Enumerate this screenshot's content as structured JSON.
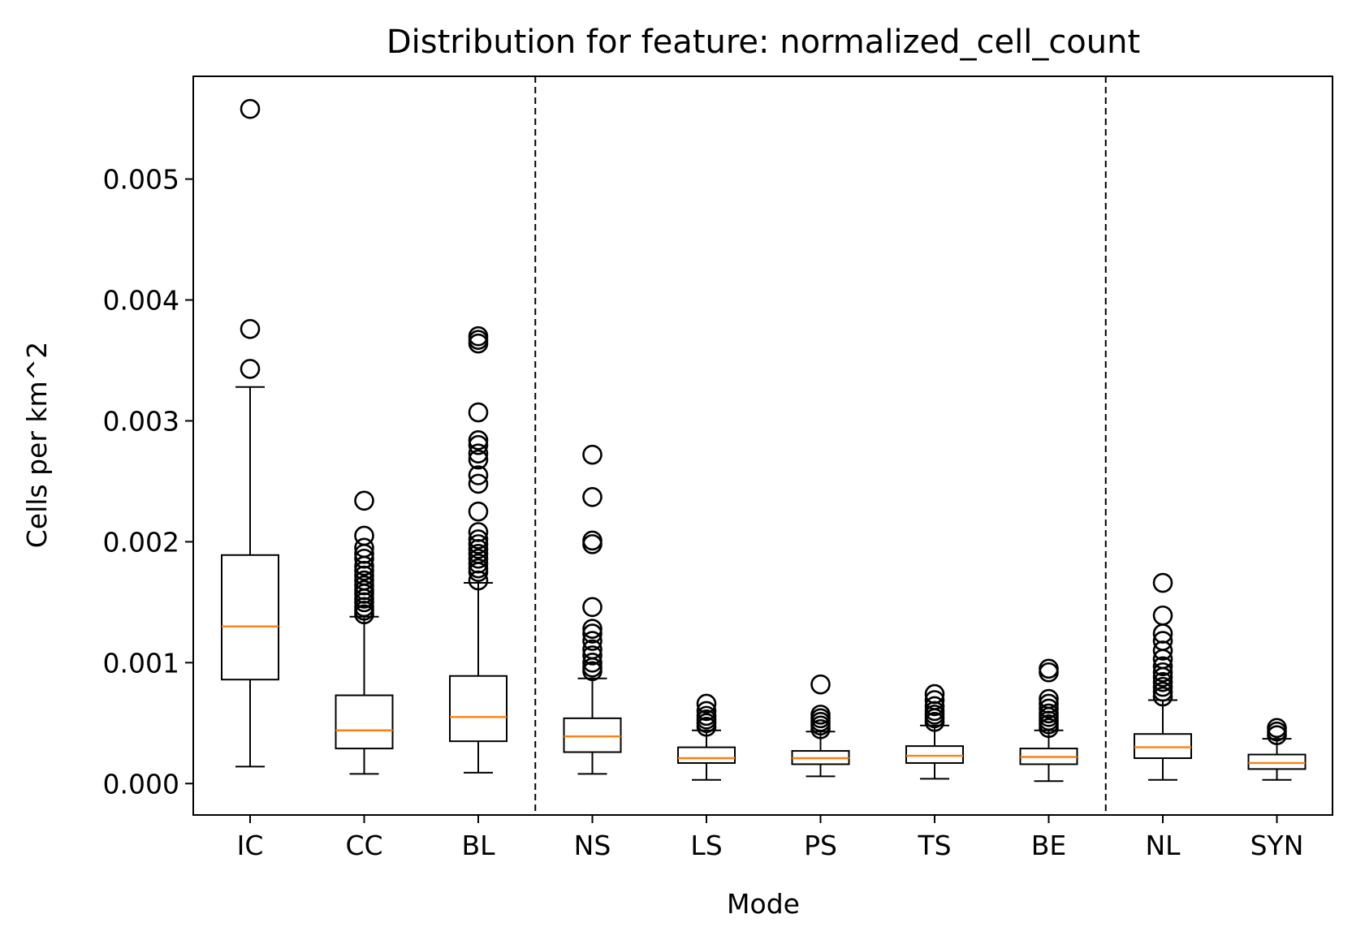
{
  "chart_data": {
    "type": "boxplot",
    "title": "Distribution for feature: normalized_cell_count",
    "xlabel": "Mode",
    "ylabel": "Cells per km^2",
    "ylim": [
      -0.00026,
      0.00585
    ],
    "yticks": [
      0.0,
      0.001,
      0.002,
      0.003,
      0.004,
      0.005
    ],
    "ytick_labels": [
      "0.000",
      "0.001",
      "0.002",
      "0.003",
      "0.004",
      "0.005"
    ],
    "group_separators_after": [
      "BL",
      "BE"
    ],
    "categories": [
      "IC",
      "CC",
      "BL",
      "NS",
      "LS",
      "PS",
      "TS",
      "BE",
      "NL",
      "SYN"
    ],
    "colors": {
      "box": "#000000",
      "median": "#ff7f0e",
      "separator": "#000000"
    },
    "boxes": [
      {
        "label": "IC",
        "whislo": 0.00014,
        "q1": 0.00086,
        "med": 0.0013,
        "q3": 0.00189,
        "whishi": 0.00328,
        "fliers": [
          0.00343,
          0.00376,
          0.00558
        ]
      },
      {
        "label": "CC",
        "whislo": 8e-05,
        "q1": 0.00029,
        "med": 0.00044,
        "q3": 0.00073,
        "whishi": 0.00138,
        "fliers": [
          0.0014,
          0.00143,
          0.00146,
          0.0015,
          0.00153,
          0.00157,
          0.0016,
          0.00164,
          0.00168,
          0.00172,
          0.00176,
          0.0018,
          0.00186,
          0.0019,
          0.00195,
          0.00205,
          0.00234
        ]
      },
      {
        "label": "BL",
        "whislo": 9e-05,
        "q1": 0.00035,
        "med": 0.00055,
        "q3": 0.00089,
        "whishi": 0.00166,
        "fliers": [
          0.00168,
          0.00175,
          0.00178,
          0.00182,
          0.00186,
          0.0019,
          0.00194,
          0.00198,
          0.00202,
          0.00208,
          0.00225,
          0.00248,
          0.00255,
          0.00268,
          0.00273,
          0.0028,
          0.00284,
          0.00307,
          0.00364,
          0.00367,
          0.0037
        ]
      },
      {
        "label": "NS",
        "whislo": 8e-05,
        "q1": 0.00026,
        "med": 0.00039,
        "q3": 0.00054,
        "whishi": 0.00087,
        "fliers": [
          0.00093,
          0.00096,
          0.001,
          0.00106,
          0.00111,
          0.00118,
          0.00124,
          0.00128,
          0.00146,
          0.00198,
          0.00201,
          0.00237,
          0.00272
        ]
      },
      {
        "label": "LS",
        "whislo": 3e-05,
        "q1": 0.00017,
        "med": 0.00021,
        "q3": 0.0003,
        "whishi": 0.00044,
        "fliers": [
          0.00047,
          0.0005,
          0.00053,
          0.00056,
          0.0006,
          0.00066
        ]
      },
      {
        "label": "PS",
        "whislo": 6e-05,
        "q1": 0.00016,
        "med": 0.00021,
        "q3": 0.00027,
        "whishi": 0.00043,
        "fliers": [
          0.00045,
          0.00048,
          0.00051,
          0.00054,
          0.00057,
          0.00082
        ]
      },
      {
        "label": "TS",
        "whislo": 4e-05,
        "q1": 0.00017,
        "med": 0.00023,
        "q3": 0.00031,
        "whishi": 0.00048,
        "fliers": [
          0.00051,
          0.00054,
          0.00057,
          0.0006,
          0.00064,
          0.00069,
          0.00074
        ]
      },
      {
        "label": "BE",
        "whislo": 2e-05,
        "q1": 0.00016,
        "med": 0.00022,
        "q3": 0.00029,
        "whishi": 0.00044,
        "fliers": [
          0.00046,
          0.00049,
          0.00052,
          0.00055,
          0.00058,
          0.00062,
          0.00066,
          0.0007,
          0.00092,
          0.00095
        ]
      },
      {
        "label": "NL",
        "whislo": 3e-05,
        "q1": 0.00021,
        "med": 0.0003,
        "q3": 0.00041,
        "whishi": 0.00069,
        "fliers": [
          0.00072,
          0.00076,
          0.0008,
          0.00084,
          0.00088,
          0.00092,
          0.00097,
          0.00103,
          0.0011,
          0.00118,
          0.00124,
          0.00139,
          0.00166
        ]
      },
      {
        "label": "SYN",
        "whislo": 3e-05,
        "q1": 0.00012,
        "med": 0.00017,
        "q3": 0.00024,
        "whishi": 0.00037,
        "fliers": [
          0.0004,
          0.00043,
          0.00046
        ]
      }
    ]
  }
}
